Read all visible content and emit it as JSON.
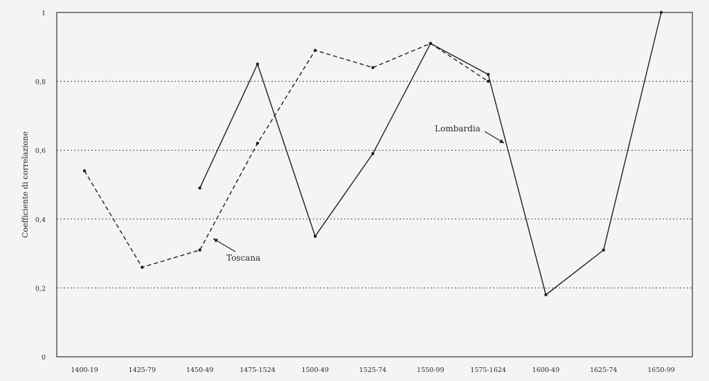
{
  "chart_data": {
    "type": "line",
    "title": "",
    "xlabel": "",
    "ylabel": "Coefficiente di correlazione",
    "categories": [
      "1400-19",
      "1425-79",
      "1450-49",
      "1475-1524",
      "1500-49",
      "1525-74",
      "1550-99",
      "1575-1624",
      "1600-49",
      "1625-74",
      "1650-99"
    ],
    "y_tick_labels": [
      "0",
      "0,2",
      "0,4",
      "0,6",
      "0,8",
      "1"
    ],
    "ylim": [
      0,
      1
    ],
    "grid": "horizontal-dotted",
    "legend": "none",
    "series": [
      {
        "name": "Toscana",
        "style": "dashed",
        "values": [
          0.54,
          0.26,
          0.31,
          0.62,
          0.89,
          0.84,
          0.91,
          0.8,
          null,
          null,
          null
        ]
      },
      {
        "name": "Lombardia",
        "style": "solid",
        "values": [
          null,
          null,
          0.49,
          0.85,
          0.35,
          0.59,
          0.91,
          0.82,
          0.18,
          0.31,
          1.0
        ]
      }
    ],
    "annotations": [
      {
        "text": "Toscana",
        "points_to_category": "1450-49"
      },
      {
        "text": "Lombardia",
        "points_to_category": "1575-1624"
      }
    ]
  }
}
